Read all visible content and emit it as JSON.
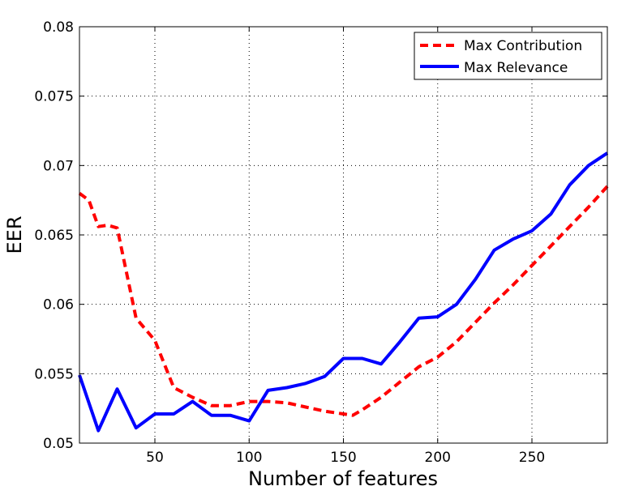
{
  "chart_data": {
    "type": "line",
    "title": "",
    "xlabel": "Number of features",
    "ylabel": "EER",
    "xlim": [
      10,
      290
    ],
    "ylim": [
      0.05,
      0.08
    ],
    "xticks": [
      50,
      100,
      150,
      200,
      250
    ],
    "xtick_labels": [
      "50",
      "100",
      "150",
      "200",
      "250"
    ],
    "yticks": [
      0.05,
      0.055,
      0.06,
      0.065,
      0.07,
      0.075,
      0.08
    ],
    "ytick_labels": [
      "0.05",
      "0.055",
      "0.06",
      "0.065",
      "0.07",
      "0.075",
      "0.08"
    ],
    "grid": true,
    "legend_position": "top-right",
    "series": [
      {
        "name": "Max Contribution",
        "color": "#ff0000",
        "line_style": "dashed",
        "x": [
          10,
          15,
          20,
          25,
          30,
          40,
          50,
          60,
          70,
          80,
          90,
          100,
          110,
          120,
          130,
          140,
          150,
          155,
          160,
          170,
          180,
          190,
          200,
          210,
          220,
          230,
          240,
          250,
          260,
          270,
          280,
          290
        ],
        "y": [
          0.068,
          0.0675,
          0.0656,
          0.0657,
          0.0655,
          0.059,
          0.0574,
          0.054,
          0.0533,
          0.0527,
          0.0527,
          0.053,
          0.053,
          0.0529,
          0.0526,
          0.0523,
          0.0521,
          0.052,
          0.0524,
          0.0533,
          0.0544,
          0.0555,
          0.0562,
          0.0573,
          0.0587,
          0.0601,
          0.0614,
          0.0628,
          0.0642,
          0.0656,
          0.067,
          0.0685
        ]
      },
      {
        "name": "Max Relevance",
        "color": "#0000ff",
        "line_style": "solid",
        "x": [
          10,
          20,
          30,
          40,
          50,
          60,
          70,
          80,
          90,
          100,
          110,
          120,
          130,
          140,
          150,
          160,
          170,
          180,
          190,
          200,
          210,
          220,
          230,
          240,
          250,
          260,
          270,
          280,
          290
        ],
        "y": [
          0.0549,
          0.0509,
          0.0539,
          0.0511,
          0.0521,
          0.0521,
          0.053,
          0.052,
          0.052,
          0.0516,
          0.0538,
          0.054,
          0.0543,
          0.0548,
          0.0561,
          0.0561,
          0.0557,
          0.0573,
          0.059,
          0.0591,
          0.06,
          0.0618,
          0.0639,
          0.0647,
          0.0653,
          0.0665,
          0.0686,
          0.07,
          0.0709
        ]
      }
    ]
  }
}
